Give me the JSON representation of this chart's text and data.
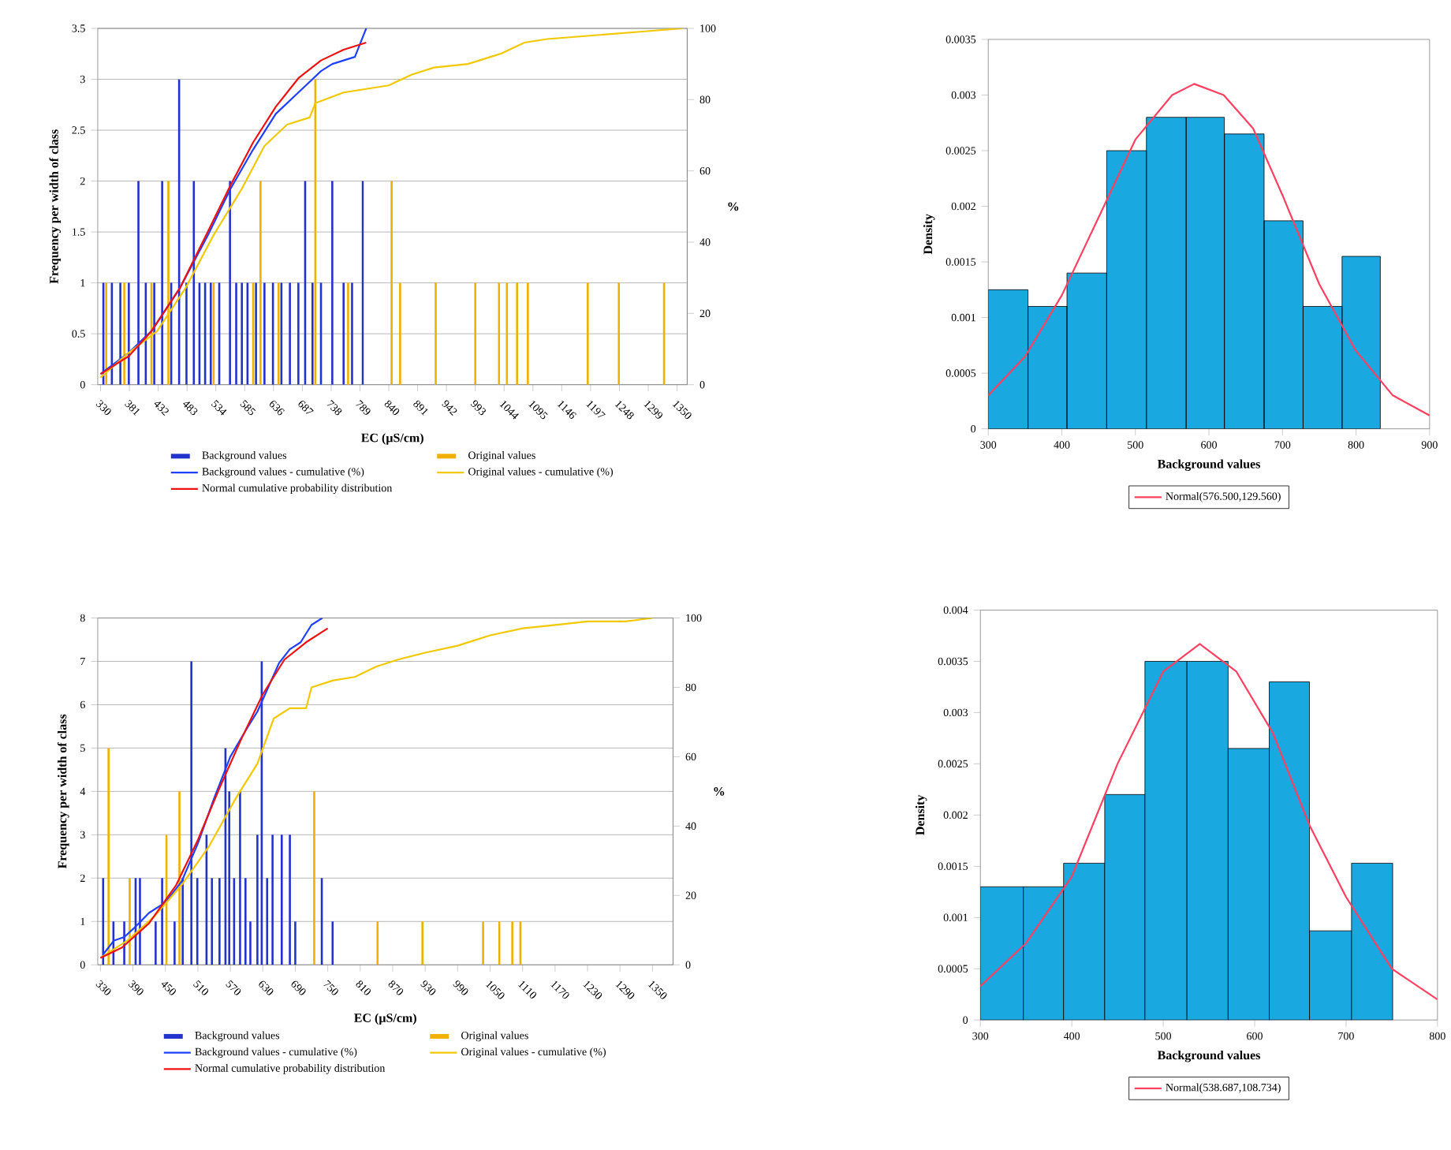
{
  "chart_data": [
    {
      "type": "bar",
      "xlabel": "EC (µS/cm)",
      "ylabel": "Frequency per width of class",
      "y2label": "%",
      "xlim": [
        325,
        1368
      ],
      "xticks": [
        330,
        381,
        432,
        483,
        534,
        585,
        636,
        687,
        738,
        789,
        840,
        891,
        942,
        993,
        1044,
        1095,
        1146,
        1197,
        1248,
        1299,
        1350
      ],
      "ylim": [
        0,
        3.5
      ],
      "yticks": [
        0,
        0.5,
        1,
        1.5,
        2,
        2.5,
        3,
        3.5
      ],
      "y2lim": [
        0,
        100
      ],
      "y2ticks": [
        0,
        20,
        40,
        60,
        80,
        100
      ],
      "grid": "y",
      "legend": "bottom",
      "series": [
        {
          "name": "Background values",
          "type": "bar",
          "color": "#2233cc",
          "x": [
            335,
            350,
            365,
            380,
            397,
            410,
            425,
            439,
            455,
            469,
            482,
            495,
            505,
            515,
            525,
            540,
            559,
            570,
            580,
            590,
            605,
            620,
            635,
            650,
            665,
            680,
            692,
            705,
            720,
            740,
            760,
            775,
            794
          ],
          "values": [
            1,
            1,
            1,
            1,
            2,
            1,
            1,
            2,
            1,
            3,
            1,
            2,
            1,
            1,
            1,
            1,
            2,
            1,
            1,
            1,
            1,
            1,
            1,
            1,
            1,
            1,
            2,
            1,
            1,
            2,
            1,
            1,
            2
          ]
        },
        {
          "name": "Original values",
          "type": "bar",
          "color": "#f0b000",
          "x": [
            340,
            372,
            420,
            450,
            530,
            600,
            613,
            645,
            710,
            768,
            845,
            860,
            923,
            993,
            1035,
            1049,
            1067,
            1086,
            1192,
            1247,
            1327
          ],
          "values": [
            1,
            1,
            1,
            2,
            1,
            1,
            2,
            1,
            3,
            1,
            2,
            1,
            1,
            1,
            1,
            1,
            1,
            1,
            1,
            1,
            1
          ]
        },
        {
          "name": "Background values - cumulative (%)",
          "type": "line",
          "axis": "y2",
          "color": "#2040ff",
          "x": [
            330,
            380,
            420,
            470,
            520,
            560,
            600,
            640,
            680,
            700,
            720,
            740,
            760,
            780,
            790,
            800
          ],
          "values": [
            3,
            9,
            15,
            27,
            42,
            55,
            66,
            76,
            82,
            85,
            88,
            90,
            91,
            92,
            96,
            100
          ]
        },
        {
          "name": "Original values - cumulative (%)",
          "type": "line",
          "axis": "y2",
          "color": "#f2c800",
          "x": [
            330,
            380,
            430,
            480,
            530,
            580,
            620,
            660,
            700,
            710,
            760,
            800,
            840,
            880,
            920,
            980,
            1040,
            1080,
            1120,
            1200,
            1280,
            1360
          ],
          "values": [
            2,
            9,
            15,
            27,
            42,
            55,
            67,
            73,
            75,
            79,
            82,
            83,
            84,
            87,
            89,
            90,
            93,
            96,
            97,
            98,
            99,
            100
          ]
        },
        {
          "name": "Normal cumulative probability distribution",
          "type": "line",
          "axis": "y2",
          "color": "#ee1111",
          "x": [
            330,
            380,
            420,
            470,
            520,
            560,
            600,
            640,
            680,
            720,
            760,
            800
          ],
          "values": [
            3,
            8,
            15,
            27,
            43,
            56,
            68,
            78,
            86,
            91,
            94,
            96
          ]
        }
      ]
    },
    {
      "type": "histogram",
      "xlabel": "Background values",
      "ylabel": "Density",
      "xlim": [
        300,
        900
      ],
      "xticks": [
        300,
        400,
        500,
        600,
        700,
        800,
        900
      ],
      "ylim": [
        0,
        0.0035
      ],
      "yticks": [
        0,
        0.0005,
        0.001,
        0.0015,
        0.002,
        0.0025,
        0.003,
        0.0035
      ],
      "legend": "bottom",
      "series": [
        {
          "type": "histogram",
          "color": "#1aa8e0",
          "bins": [
            300,
            354,
            407,
            461,
            515,
            569,
            621,
            675,
            728,
            781,
            833
          ],
          "values": [
            0.00125,
            0.0011,
            0.0014,
            0.0025,
            0.0028,
            0.0028,
            0.00265,
            0.00187,
            0.0011,
            0.00155
          ]
        },
        {
          "name": "Normal(576.500,129.560)",
          "type": "line",
          "color": "#ff4060",
          "x": [
            300,
            350,
            400,
            450,
            500,
            550,
            580,
            620,
            660,
            700,
            750,
            800,
            850,
            900
          ],
          "values": [
            0.0003,
            0.00065,
            0.0012,
            0.0019,
            0.0026,
            0.003,
            0.0031,
            0.003,
            0.0027,
            0.0021,
            0.0013,
            0.0007,
            0.0003,
            0.00012
          ]
        }
      ]
    },
    {
      "type": "bar",
      "xlabel": "EC (µS/cm)",
      "ylabel": "Frequency per width of class",
      "y2label": "%",
      "xlim": [
        325,
        1388
      ],
      "xticks": [
        330,
        390,
        450,
        510,
        570,
        630,
        690,
        750,
        810,
        870,
        930,
        990,
        1050,
        1110,
        1170,
        1230,
        1290,
        1350
      ],
      "ylim": [
        0,
        8
      ],
      "yticks": [
        0,
        1,
        2,
        3,
        4,
        5,
        6,
        7,
        8
      ],
      "y2lim": [
        0,
        100
      ],
      "y2ticks": [
        0,
        20,
        40,
        60,
        80,
        100
      ],
      "grid": "y",
      "legend": "bottom",
      "series": [
        {
          "name": "Background values",
          "type": "bar",
          "color": "#2233cc",
          "x": [
            335,
            354,
            374,
            395,
            403,
            432,
            444,
            467,
            482,
            498,
            509,
            526,
            536,
            550,
            561,
            568,
            577,
            588,
            598,
            607,
            620,
            628,
            638,
            648,
            665,
            680,
            690,
            739,
            759
          ],
          "values": [
            2,
            1,
            1,
            2,
            2,
            1,
            2,
            1,
            2,
            7,
            2,
            3,
            2,
            2,
            5,
            4,
            2,
            4,
            2,
            1,
            3,
            7,
            2,
            3,
            3,
            3,
            1,
            2,
            1
          ]
        },
        {
          "name": "Original values",
          "type": "bar",
          "color": "#f0b000",
          "x": [
            345,
            384,
            452,
            476,
            725,
            842,
            925,
            1037,
            1067,
            1091,
            1106
          ],
          "values": [
            5,
            2,
            3,
            4,
            4,
            1,
            1,
            1,
            1,
            1,
            1
          ]
        },
        {
          "name": "Background values - cumulative (%)",
          "type": "line",
          "axis": "y2",
          "color": "#2040ff",
          "x": [
            335,
            355,
            374,
            395,
            420,
            450,
            480,
            510,
            540,
            570,
            600,
            620,
            640,
            660,
            680,
            700,
            720,
            740
          ],
          "values": [
            3,
            7,
            8,
            11,
            15,
            18,
            24,
            35,
            48,
            60,
            68,
            73,
            80,
            87,
            91,
            93,
            98,
            100
          ]
        },
        {
          "name": "Original values - cumulative (%)",
          "type": "line",
          "axis": "y2",
          "color": "#f2c800",
          "x": [
            330,
            380,
            430,
            480,
            530,
            580,
            620,
            650,
            680,
            710,
            720,
            760,
            800,
            840,
            880,
            930,
            990,
            1050,
            1110,
            1170,
            1230,
            1300,
            1350
          ],
          "values": [
            2,
            7,
            14,
            23,
            34,
            48,
            58,
            71,
            74,
            74,
            80,
            82,
            83,
            86,
            88,
            90,
            92,
            95,
            97,
            98,
            99,
            99,
            100
          ]
        },
        {
          "name": "Normal cumulative probability distribution",
          "type": "line",
          "axis": "y2",
          "color": "#ee1111",
          "x": [
            330,
            370,
            420,
            470,
            510,
            550,
            590,
            630,
            670,
            710,
            750
          ],
          "values": [
            2,
            5,
            12,
            23,
            36,
            51,
            65,
            78,
            88,
            93,
            97
          ]
        }
      ]
    },
    {
      "type": "histogram",
      "xlabel": "Background values",
      "ylabel": "Density",
      "xlim": [
        300,
        800
      ],
      "xticks": [
        300,
        400,
        500,
        600,
        700,
        800
      ],
      "ylim": [
        0,
        0.004
      ],
      "yticks": [
        0,
        0.0005,
        0.001,
        0.0015,
        0.002,
        0.0025,
        0.003,
        0.0035,
        0.004
      ],
      "legend": "bottom",
      "series": [
        {
          "type": "histogram",
          "color": "#1aa8e0",
          "bins": [
            300,
            347,
            391,
            436,
            480,
            526,
            571,
            616,
            660,
            706,
            751
          ],
          "values": [
            0.0013,
            0.0013,
            0.00153,
            0.0022,
            0.0035,
            0.0035,
            0.00265,
            0.0033,
            0.00087,
            0.00153
          ]
        },
        {
          "name": "Normal(538.687,108.734)",
          "type": "line",
          "color": "#ff4060",
          "x": [
            300,
            350,
            400,
            450,
            500,
            540,
            580,
            620,
            660,
            700,
            750,
            800
          ],
          "values": [
            0.00033,
            0.00075,
            0.0014,
            0.0025,
            0.0034,
            0.00367,
            0.0034,
            0.0028,
            0.0019,
            0.0012,
            0.0005,
            0.0002
          ]
        }
      ]
    }
  ]
}
